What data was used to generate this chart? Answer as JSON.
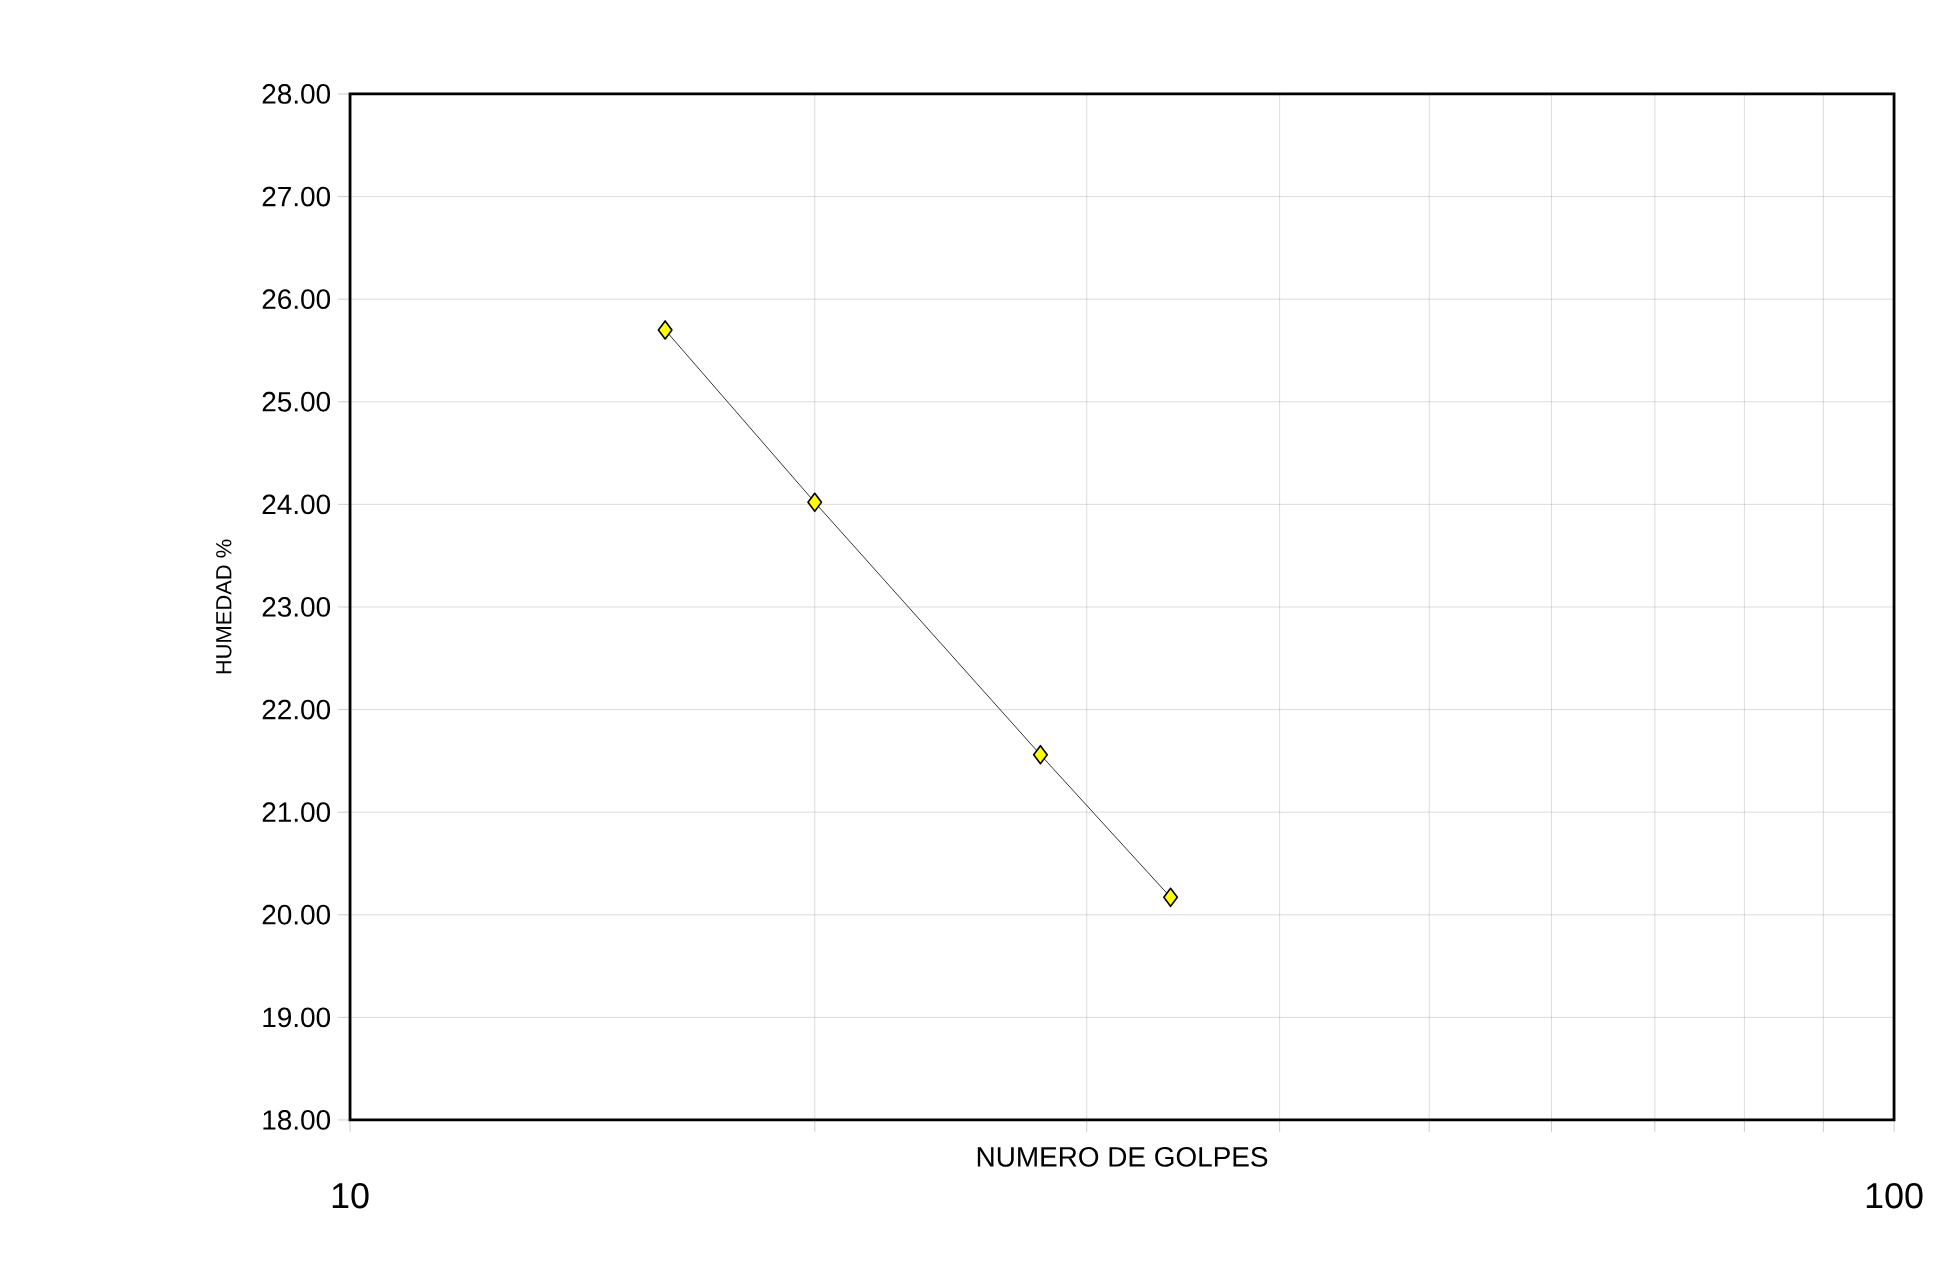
{
  "chart_data": {
    "type": "line",
    "xlabel": "NUMERO DE GOLPES",
    "ylabel": "HUMEDAD %",
    "x": [
      16,
      20,
      28,
      34
    ],
    "series": [
      {
        "color": "#ffff00",
        "values": [
          25.7,
          24.02,
          21.56,
          20.17
        ]
      }
    ],
    "log": "x",
    "xlim": [
      10,
      100
    ],
    "xticks": [
      10,
      {
        "value": 20,
        "label": null
      },
      {
        "value": 30,
        "label": null
      },
      {
        "value": 40,
        "label": null
      },
      {
        "value": 50,
        "label": null
      },
      {
        "value": 60,
        "label": null
      },
      {
        "value": 70,
        "label": null
      },
      {
        "value": 80,
        "label": null
      },
      {
        "value": 90,
        "label": null
      },
      100
    ],
    "ylim": [
      18,
      28
    ],
    "yticks": [
      {
        "value": 18,
        "label": "18.00"
      },
      {
        "value": 19,
        "label": "19.00"
      },
      {
        "value": 20,
        "label": "20.00"
      },
      {
        "value": 21,
        "label": "21.00"
      },
      {
        "value": 22,
        "label": "22.00"
      },
      {
        "value": 23,
        "label": "23.00"
      },
      {
        "value": 24,
        "label": "24.00"
      },
      {
        "value": 25,
        "label": "25.00"
      },
      {
        "value": 26,
        "label": "26.00"
      },
      {
        "value": 27,
        "label": "27.00"
      },
      {
        "value": 28,
        "label": "28.00"
      }
    ],
    "grid": true,
    "marker": "diamond",
    "line_style": "solid"
  }
}
